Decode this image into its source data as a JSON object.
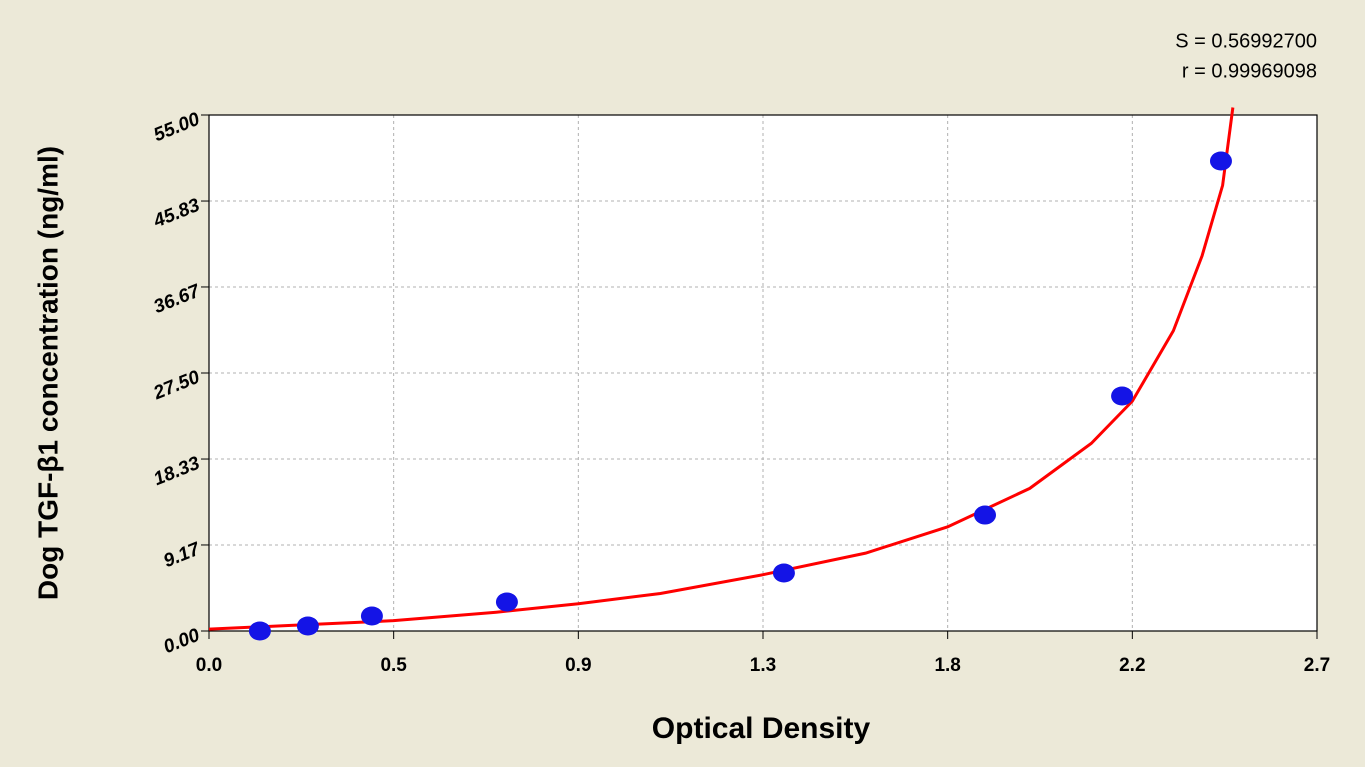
{
  "chart_data": {
    "type": "scatter",
    "x_label": "Optical Density",
    "y_label": "Dog TGF-β1 concentration (ng/ml)",
    "annotations": [
      "S = 0.56992700",
      "r = 0.99969098"
    ],
    "xlim": [
      0,
      2.7
    ],
    "ylim": [
      0,
      55
    ],
    "xticks": [
      {
        "value": 0,
        "label": "0.0"
      },
      {
        "value": 0.45,
        "label": "0.5"
      },
      0.9,
      {
        "value": 1.35,
        "label": "1.3"
      },
      1.8,
      {
        "value": 2.25,
        "label": "2.2"
      },
      2.7
    ],
    "yticks": [
      {
        "value": 0,
        "label": "0.00"
      },
      9.17,
      18.33,
      {
        "value": 27.5,
        "label": "27.50"
      },
      36.67,
      45.83,
      {
        "value": 55,
        "label": "55.00"
      }
    ],
    "grid": true,
    "series": [
      {
        "style": "markers",
        "color": "#1414e6",
        "x": [
          0.124,
          0.241,
          0.397,
          0.726,
          1.401,
          1.891,
          2.225,
          2.466
        ],
        "values": [
          0,
          0.53,
          1.6,
          3.09,
          6.18,
          12.36,
          25.05,
          50.1
        ]
      },
      {
        "style": "line",
        "color": "#ff0000",
        "x": [
          0,
          0.2,
          0.45,
          0.7,
          0.9,
          1.1,
          1.35,
          1.6,
          1.8,
          2.0,
          2.15,
          2.25,
          2.35,
          2.42,
          2.47,
          2.495
        ],
        "values": [
          0.2,
          0.6,
          1.1,
          2.0,
          2.9,
          4.0,
          6.0,
          8.3,
          11.1,
          15.2,
          20,
          24.5,
          32,
          40,
          47.5,
          55.8
        ]
      }
    ]
  }
}
